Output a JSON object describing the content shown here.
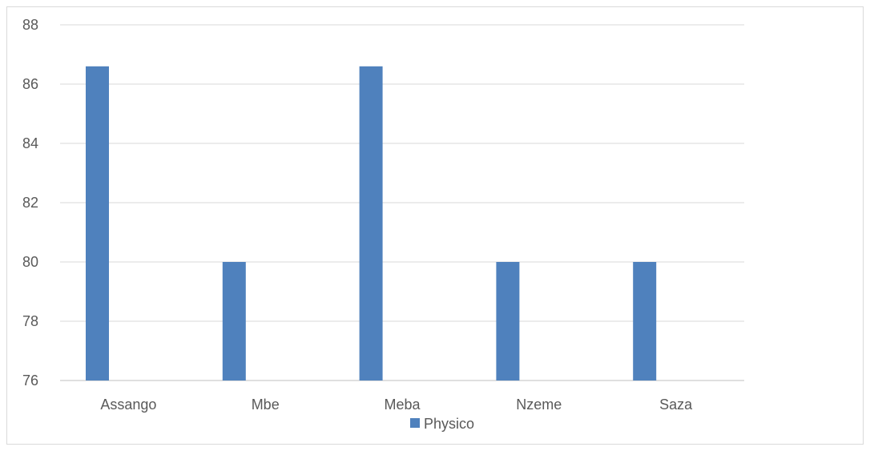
{
  "chart_data": {
    "type": "bar",
    "categories": [
      "Assango",
      "Mbe",
      "Meba",
      "Nzeme",
      "Saza"
    ],
    "series": [
      {
        "name": "Physico",
        "values": [
          86.6,
          80,
          86.6,
          80,
          80
        ],
        "color": "#4f81bd"
      }
    ],
    "ylim": [
      76,
      88
    ],
    "yticks": [
      76,
      78,
      80,
      82,
      84,
      86,
      88
    ],
    "grid": true,
    "legend_position": "bottom"
  }
}
